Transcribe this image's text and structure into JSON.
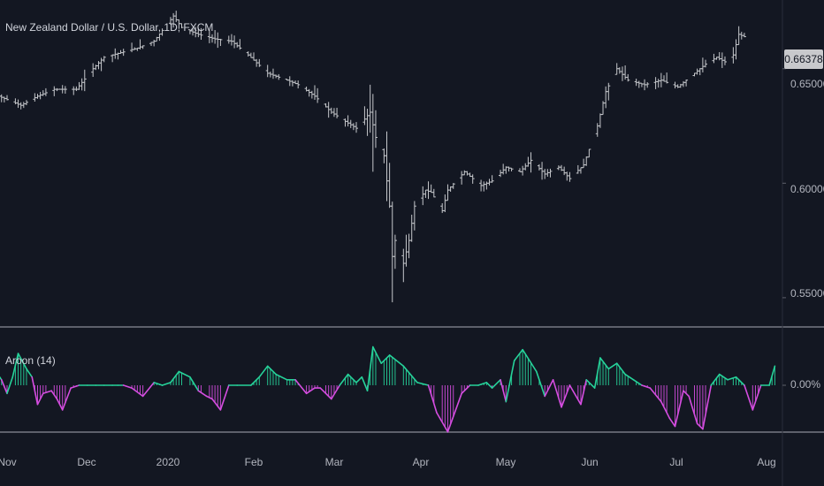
{
  "chart_data": [
    {
      "type": "ohlc",
      "title": "New Zealand Dollar / U.S. Dollar, 1D, FXCM",
      "ylim": [
        0.538,
        0.68
      ],
      "price_ticks": [
        {
          "label": "0.65000",
          "value": 0.65
        },
        {
          "label": "0.60000",
          "value": 0.6
        },
        {
          "label": "0.55000",
          "value": 0.55
        }
      ],
      "last_price": {
        "label": "0.66378",
        "value": 0.66378
      },
      "time_ticks": [
        {
          "label": "Nov",
          "date": "2019-11-01"
        },
        {
          "label": "Dec",
          "date": "2019-12-01"
        },
        {
          "label": "2020",
          "date": "2020-01-01"
        },
        {
          "label": "Feb",
          "date": "2020-02-01"
        },
        {
          "label": "Mar",
          "date": "2020-03-01"
        },
        {
          "label": "Apr",
          "date": "2020-04-01"
        },
        {
          "label": "May",
          "date": "2020-05-01"
        },
        {
          "label": "Jun",
          "date": "2020-06-01"
        },
        {
          "label": "Jul",
          "date": "2020-07-01"
        },
        {
          "label": "Aug",
          "date": "2020-08-01"
        }
      ],
      "close_path": [
        [
          "2019-10-25",
          0.64
        ],
        [
          "2019-10-31",
          0.637
        ],
        [
          "2019-11-06",
          0.634
        ],
        [
          "2019-11-12",
          0.638
        ],
        [
          "2019-11-18",
          0.641
        ],
        [
          "2019-11-26",
          0.641
        ],
        [
          "2019-12-02",
          0.65
        ],
        [
          "2019-12-06",
          0.655
        ],
        [
          "2019-12-12",
          0.657
        ],
        [
          "2019-12-18",
          0.659
        ],
        [
          "2019-12-24",
          0.662
        ],
        [
          "2019-12-31",
          0.673
        ],
        [
          "2020-01-03",
          0.668
        ],
        [
          "2020-01-09",
          0.665
        ],
        [
          "2020-01-15",
          0.663
        ],
        [
          "2020-01-21",
          0.662
        ],
        [
          "2020-01-27",
          0.656
        ],
        [
          "2020-02-03",
          0.648
        ],
        [
          "2020-02-10",
          0.645
        ],
        [
          "2020-02-14",
          0.643
        ],
        [
          "2020-02-20",
          0.638
        ],
        [
          "2020-02-26",
          0.631
        ],
        [
          "2020-03-02",
          0.627
        ],
        [
          "2020-03-06",
          0.624
        ],
        [
          "2020-03-09",
          0.628
        ],
        [
          "2020-03-11",
          0.631
        ],
        [
          "2020-03-13",
          0.62
        ],
        [
          "2020-03-16",
          0.612
        ],
        [
          "2020-03-18",
          0.59
        ],
        [
          "2020-03-19",
          0.568
        ],
        [
          "2020-03-20",
          0.575
        ],
        [
          "2020-03-23",
          0.565
        ],
        [
          "2020-03-25",
          0.575
        ],
        [
          "2020-03-27",
          0.59
        ],
        [
          "2020-03-31",
          0.597
        ],
        [
          "2020-04-02",
          0.596
        ],
        [
          "2020-04-06",
          0.588
        ],
        [
          "2020-04-08",
          0.597
        ],
        [
          "2020-04-14",
          0.605
        ],
        [
          "2020-04-20",
          0.599
        ],
        [
          "2020-04-24",
          0.601
        ],
        [
          "2020-04-29",
          0.607
        ],
        [
          "2020-05-04",
          0.605
        ],
        [
          "2020-05-08",
          0.61
        ],
        [
          "2020-05-13",
          0.604
        ],
        [
          "2020-05-18",
          0.607
        ],
        [
          "2020-05-22",
          0.602
        ],
        [
          "2020-05-27",
          0.608
        ],
        [
          "2020-06-01",
          0.625
        ],
        [
          "2020-06-04",
          0.64
        ],
        [
          "2020-06-08",
          0.65
        ],
        [
          "2020-06-12",
          0.645
        ],
        [
          "2020-06-18",
          0.643
        ],
        [
          "2020-06-24",
          0.645
        ],
        [
          "2020-06-30",
          0.642
        ],
        [
          "2020-07-06",
          0.648
        ],
        [
          "2020-07-10",
          0.652
        ],
        [
          "2020-07-14",
          0.655
        ],
        [
          "2020-07-17",
          0.653
        ],
        [
          "2020-07-20",
          0.656
        ],
        [
          "2020-07-22",
          0.665
        ],
        [
          "2020-07-24",
          0.664
        ]
      ]
    },
    {
      "type": "bar",
      "title": "Aroon (14)",
      "ylim": [
        -100,
        100
      ],
      "ticks": [
        {
          "label": "0.00%",
          "value": 0
        }
      ],
      "colors": {
        "positive": "#26d39a",
        "negative": "#d54de0"
      },
      "oscillator_path": [
        [
          "2019-10-25",
          10
        ],
        [
          "2019-10-28",
          25
        ],
        [
          "2019-10-30",
          10
        ],
        [
          "2019-11-01",
          -15
        ],
        [
          "2019-11-03",
          15
        ],
        [
          "2019-11-05",
          58
        ],
        [
          "2019-11-08",
          30
        ],
        [
          "2019-11-10",
          15
        ],
        [
          "2019-11-12",
          -35
        ],
        [
          "2019-11-14",
          -15
        ],
        [
          "2019-11-17",
          -10
        ],
        [
          "2019-11-19",
          -25
        ],
        [
          "2019-11-21",
          -45
        ],
        [
          "2019-11-24",
          -5
        ],
        [
          "2019-11-27",
          0
        ],
        [
          "2019-11-30",
          0
        ],
        [
          "2019-12-03",
          0
        ],
        [
          "2019-12-06",
          0
        ],
        [
          "2019-12-09",
          0
        ],
        [
          "2019-12-11",
          0
        ],
        [
          "2019-12-13",
          0
        ],
        [
          "2019-12-16",
          -5
        ],
        [
          "2019-12-20",
          -20
        ],
        [
          "2019-12-24",
          5
        ],
        [
          "2019-12-27",
          0
        ],
        [
          "2019-12-30",
          5
        ],
        [
          "2020-01-02",
          25
        ],
        [
          "2020-01-06",
          15
        ],
        [
          "2020-01-09",
          -10
        ],
        [
          "2020-01-12",
          -20
        ],
        [
          "2020-01-14",
          -25
        ],
        [
          "2020-01-17",
          -45
        ],
        [
          "2020-01-20",
          0
        ],
        [
          "2020-01-23",
          0
        ],
        [
          "2020-01-28",
          0
        ],
        [
          "2020-01-31",
          15
        ],
        [
          "2020-02-03",
          35
        ],
        [
          "2020-02-06",
          20
        ],
        [
          "2020-02-10",
          10
        ],
        [
          "2020-02-13",
          10
        ],
        [
          "2020-02-17",
          -15
        ],
        [
          "2020-02-20",
          -5
        ],
        [
          "2020-02-22",
          -5
        ],
        [
          "2020-02-26",
          -25
        ],
        [
          "2020-02-29",
          0
        ],
        [
          "2020-03-03",
          20
        ],
        [
          "2020-03-06",
          5
        ],
        [
          "2020-03-08",
          15
        ],
        [
          "2020-03-10",
          -10
        ],
        [
          "2020-03-12",
          70
        ],
        [
          "2020-03-15",
          40
        ],
        [
          "2020-03-18",
          55
        ],
        [
          "2020-03-23",
          35
        ],
        [
          "2020-03-28",
          5
        ],
        [
          "2020-04-01",
          0
        ],
        [
          "2020-04-04",
          -50
        ],
        [
          "2020-04-08",
          -85
        ],
        [
          "2020-04-13",
          -15
        ],
        [
          "2020-04-16",
          0
        ],
        [
          "2020-04-19",
          0
        ],
        [
          "2020-04-22",
          5
        ],
        [
          "2020-04-24",
          -5
        ],
        [
          "2020-04-27",
          10
        ],
        [
          "2020-04-29",
          -30
        ],
        [
          "2020-05-02",
          45
        ],
        [
          "2020-05-05",
          65
        ],
        [
          "2020-05-10",
          25
        ],
        [
          "2020-05-13",
          -20
        ],
        [
          "2020-05-16",
          10
        ],
        [
          "2020-05-19",
          -40
        ],
        [
          "2020-05-22",
          0
        ],
        [
          "2020-05-26",
          -35
        ],
        [
          "2020-05-28",
          10
        ],
        [
          "2020-05-31",
          -5
        ],
        [
          "2020-06-02",
          50
        ],
        [
          "2020-06-05",
          30
        ],
        [
          "2020-06-08",
          40
        ],
        [
          "2020-06-11",
          20
        ],
        [
          "2020-06-14",
          10
        ],
        [
          "2020-06-17",
          0
        ],
        [
          "2020-06-20",
          -5
        ],
        [
          "2020-06-24",
          -30
        ],
        [
          "2020-06-27",
          -60
        ],
        [
          "2020-06-29",
          -75
        ],
        [
          "2020-07-02",
          -10
        ],
        [
          "2020-07-04",
          -20
        ],
        [
          "2020-07-07",
          -70
        ],
        [
          "2020-07-09",
          -80
        ],
        [
          "2020-07-12",
          0
        ],
        [
          "2020-07-15",
          20
        ],
        [
          "2020-07-18",
          10
        ],
        [
          "2020-07-21",
          15
        ],
        [
          "2020-07-24",
          0
        ],
        [
          "2020-07-27",
          -45
        ],
        [
          "2020-07-30",
          0
        ],
        [
          "2020-08-02",
          0
        ],
        [
          "2020-08-04",
          35
        ]
      ]
    }
  ]
}
